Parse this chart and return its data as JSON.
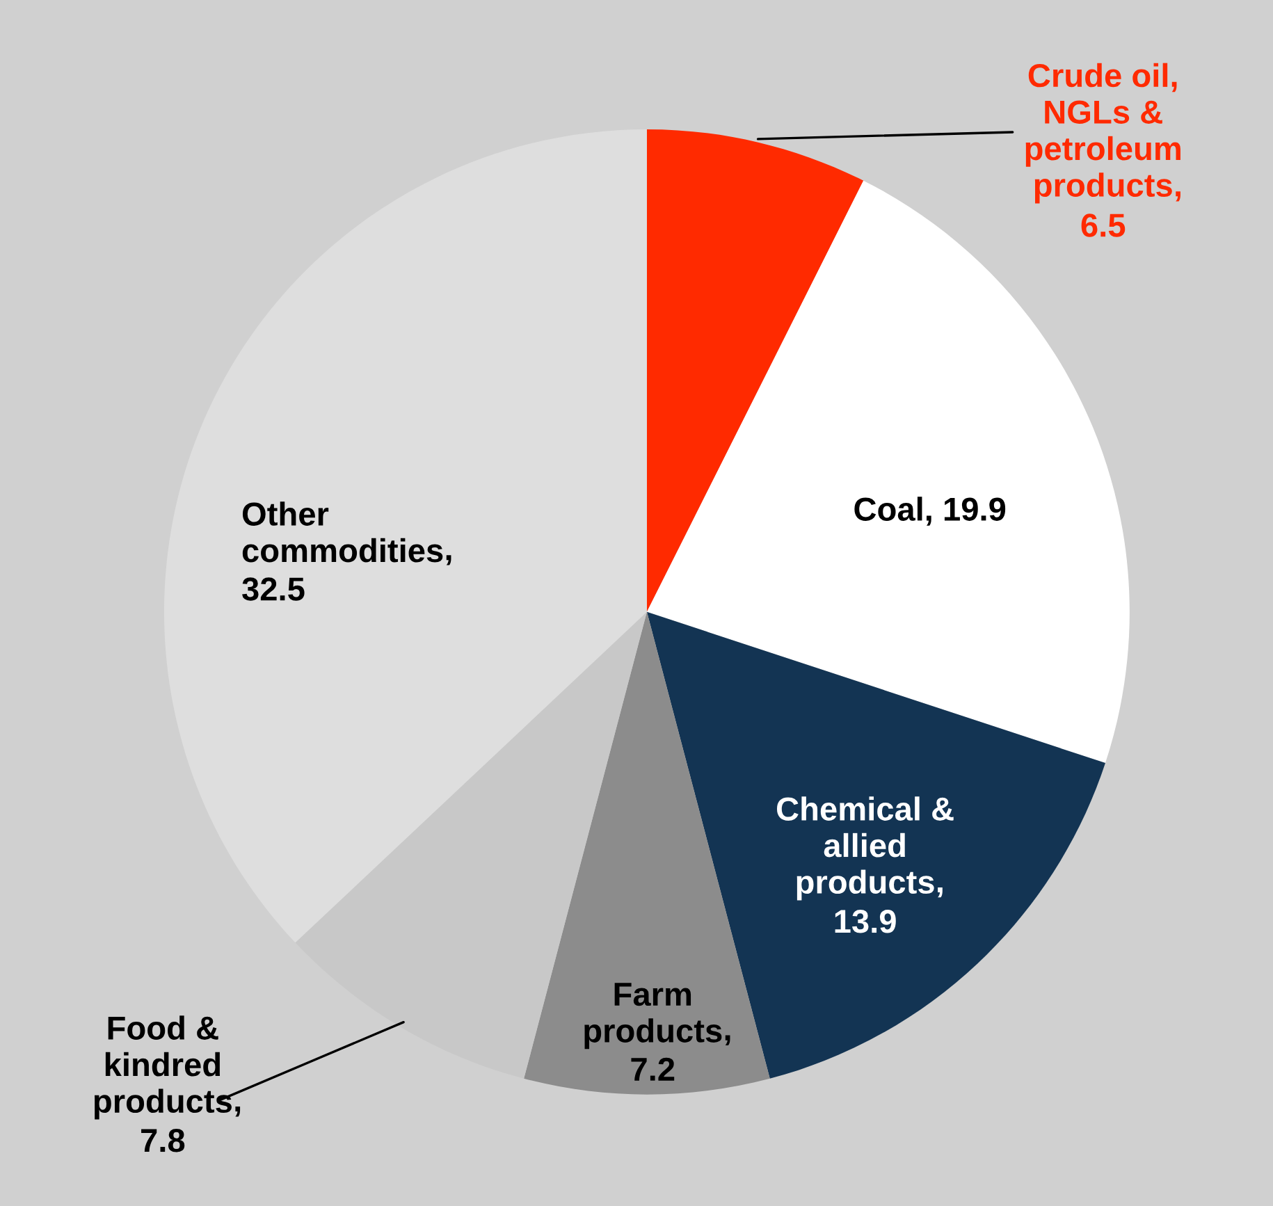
{
  "chart_data": {
    "type": "pie",
    "categories": [
      "Crude oil,\nNGLs &\npetroleum\nproducts",
      "Coal",
      "Chemical &\nallied\nproducts",
      "Farm\nproducts",
      "Food &\nkindred\nproducts",
      "Other\ncommodities"
    ],
    "values": [
      6.5,
      19.9,
      13.9,
      7.2,
      7.8,
      32.5
    ],
    "colors": [
      "#ff2a00",
      "#ffffff",
      "#133453",
      "#8c8c8c",
      "#c8c8c8",
      "#dedede"
    ],
    "value_labels": [
      ",\n6.5",
      ", 19.9",
      ",\n13.9",
      ",\n7.2",
      ",\n7.8",
      ",\n32.5"
    ]
  }
}
